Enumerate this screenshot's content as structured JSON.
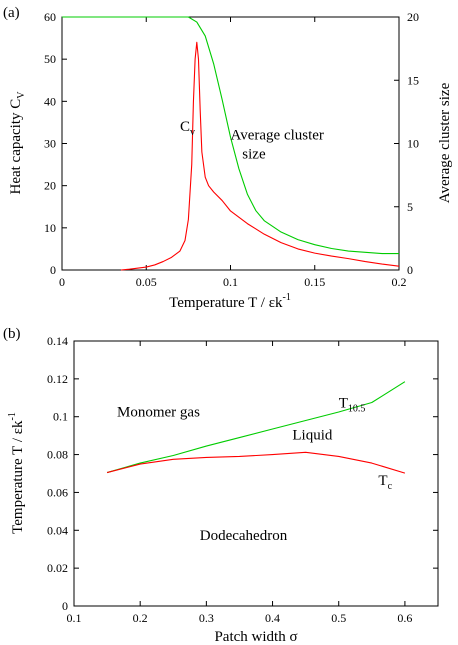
{
  "chart_data": [
    {
      "panel_label": "(a)",
      "type": "line",
      "xlabel": "Temperature T / εk",
      "xlabel_sup": "-1",
      "ylabel": "Heat capacity C",
      "ylabel_sub": "V",
      "y2label": "Average cluster size",
      "xlim": [
        0,
        0.2
      ],
      "ylim": [
        0,
        60
      ],
      "y2lim": [
        0,
        20
      ],
      "xticks": [
        "0",
        "0.05",
        "0.1",
        "0.15",
        "0.2"
      ],
      "xtick_values": [
        0,
        0.05,
        0.1,
        0.15,
        0.2
      ],
      "yticks": [
        "0",
        "10",
        "20",
        "30",
        "40",
        "50",
        "60"
      ],
      "ytick_values": [
        0,
        10,
        20,
        30,
        40,
        50,
        60
      ],
      "y2ticks": [
        "0",
        "5",
        "10",
        "15",
        "20"
      ],
      "y2tick_values": [
        0,
        5,
        10,
        15,
        20
      ],
      "grid": false,
      "annotations": [
        {
          "text": "C",
          "sub": "v",
          "x": 0.07,
          "y": 33
        },
        {
          "text": "Average cluster",
          "x": 0.1,
          "y": 31
        },
        {
          "text": "size",
          "x": 0.107,
          "y": 26.5
        }
      ],
      "series": [
        {
          "color": "#ff0000",
          "axis": "left",
          "points": [
            [
              0.035,
              0
            ],
            [
              0.04,
              0.2
            ],
            [
              0.05,
              0.7
            ],
            [
              0.055,
              1.2
            ],
            [
              0.06,
              2
            ],
            [
              0.065,
              3
            ],
            [
              0.07,
              4.5
            ],
            [
              0.073,
              7
            ],
            [
              0.075,
              12
            ],
            [
              0.077,
              25
            ],
            [
              0.078,
              40
            ],
            [
              0.079,
              50
            ],
            [
              0.08,
              54
            ],
            [
              0.081,
              50
            ],
            [
              0.082,
              38
            ],
            [
              0.083,
              28
            ],
            [
              0.085,
              22
            ],
            [
              0.087,
              20
            ],
            [
              0.09,
              18.5
            ],
            [
              0.095,
              16.5
            ],
            [
              0.1,
              14
            ],
            [
              0.11,
              11
            ],
            [
              0.12,
              8.5
            ],
            [
              0.13,
              6.5
            ],
            [
              0.14,
              5
            ],
            [
              0.15,
              4
            ],
            [
              0.16,
              3.3
            ],
            [
              0.17,
              2.7
            ],
            [
              0.18,
              2
            ],
            [
              0.19,
              1.4
            ],
            [
              0.2,
              0.9
            ]
          ]
        },
        {
          "color": "#00cc00",
          "axis": "right",
          "points": [
            [
              0,
              20
            ],
            [
              0.075,
              20
            ],
            [
              0.08,
              19.6
            ],
            [
              0.085,
              18.5
            ],
            [
              0.09,
              16.3
            ],
            [
              0.095,
              13.5
            ],
            [
              0.1,
              10.5
            ],
            [
              0.105,
              8
            ],
            [
              0.11,
              6
            ],
            [
              0.115,
              4.7
            ],
            [
              0.12,
              3.9
            ],
            [
              0.13,
              3
            ],
            [
              0.14,
              2.4
            ],
            [
              0.15,
              2
            ],
            [
              0.16,
              1.7
            ],
            [
              0.17,
              1.5
            ],
            [
              0.18,
              1.4
            ],
            [
              0.19,
              1.3
            ],
            [
              0.2,
              1.3
            ]
          ]
        }
      ]
    },
    {
      "panel_label": "(b)",
      "type": "line",
      "xlabel": "Patch width σ",
      "ylabel": "Temperature T / εk",
      "ylabel_sup": "-1",
      "xlim": [
        0.1,
        0.65
      ],
      "ylim": [
        0,
        0.14
      ],
      "xticks": [
        "0.1",
        "0.2",
        "0.3",
        "0.4",
        "0.5",
        "0.6"
      ],
      "xtick_values": [
        0.1,
        0.2,
        0.3,
        0.4,
        0.5,
        0.6
      ],
      "yticks": [
        "0",
        "0.02",
        "0.04",
        "0.06",
        "0.08",
        "0.1",
        "0.12",
        "0.14"
      ],
      "ytick_values": [
        0,
        0.02,
        0.04,
        0.06,
        0.08,
        0.1,
        0.12,
        0.14
      ],
      "grid": false,
      "annotations": [
        {
          "text": "Monomer gas",
          "x": 0.165,
          "y": 0.1
        },
        {
          "text": "T",
          "sub": "10.5",
          "x": 0.5,
          "y": 0.105
        },
        {
          "text": "Liquid",
          "x": 0.43,
          "y": 0.088
        },
        {
          "text": "T",
          "sub": "c",
          "x": 0.56,
          "y": 0.064
        },
        {
          "text": "Dodecahedron",
          "x": 0.29,
          "y": 0.035
        }
      ],
      "series": [
        {
          "color": "#00cc00",
          "points": [
            [
              0.15,
              0.0705
            ],
            [
              0.2,
              0.0755
            ],
            [
              0.25,
              0.0795
            ],
            [
              0.3,
              0.0845
            ],
            [
              0.35,
              0.089
            ],
            [
              0.4,
              0.0935
            ],
            [
              0.45,
              0.098
            ],
            [
              0.5,
              0.1025
            ],
            [
              0.55,
              0.1075
            ],
            [
              0.6,
              0.1185
            ]
          ]
        },
        {
          "color": "#ff0000",
          "points": [
            [
              0.15,
              0.0705
            ],
            [
              0.2,
              0.075
            ],
            [
              0.25,
              0.0775
            ],
            [
              0.3,
              0.0785
            ],
            [
              0.35,
              0.079
            ],
            [
              0.4,
              0.08
            ],
            [
              0.45,
              0.0812
            ],
            [
              0.5,
              0.079
            ],
            [
              0.55,
              0.0755
            ],
            [
              0.6,
              0.0702
            ]
          ]
        }
      ]
    }
  ]
}
